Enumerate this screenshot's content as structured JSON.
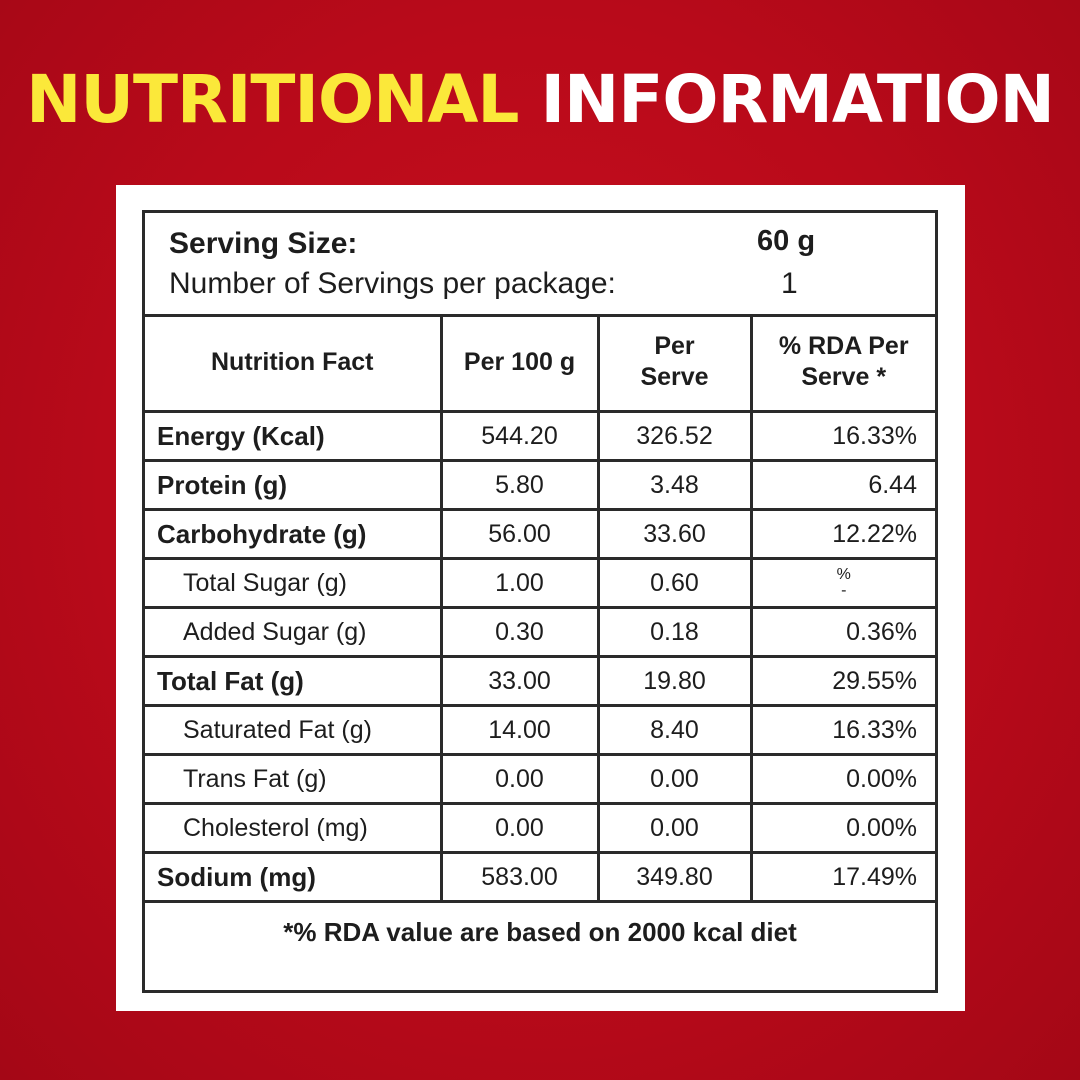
{
  "heading": {
    "part1": "NUTRITIONAL",
    "part2": "INFORMATION"
  },
  "colors": {
    "background": "#b90a1a",
    "heading_yellow": "#fbe83a",
    "heading_white": "#ffffff",
    "card": "#ffffff",
    "border": "#2a2a2a"
  },
  "serving": {
    "size_label": "Serving Size:",
    "size_value": "60 g",
    "count_label": "Number of Servings per package:",
    "count_value": "1"
  },
  "table": {
    "headers": [
      "Nutrition Fact",
      "Per 100 g",
      "Per Serve",
      "% RDA Per Serve *"
    ],
    "rows": [
      {
        "name": "Energy (Kcal)",
        "per100": "544.20",
        "perServe": "326.52",
        "rda": "16.33%"
      },
      {
        "name": "Protein (g)",
        "per100": "5.80",
        "perServe": "3.48",
        "rda": "6.44"
      },
      {
        "name": "Carbohydrate (g)",
        "per100": "56.00",
        "perServe": "33.60",
        "rda": "12.22%"
      },
      {
        "name": "Total Sugar (g)",
        "per100": "1.00",
        "perServe": "0.60",
        "rda": "%\n-"
      },
      {
        "name": "Added Sugar (g)",
        "per100": "0.30",
        "perServe": "0.18",
        "rda": "0.36%"
      },
      {
        "name": "Total Fat (g)",
        "per100": "33.00",
        "perServe": "19.80",
        "rda": "29.55%"
      },
      {
        "name": "Saturated Fat (g)",
        "per100": "14.00",
        "perServe": "8.40",
        "rda": "16.33%"
      },
      {
        "name": "Trans Fat (g)",
        "per100": "0.00",
        "perServe": "0.00",
        "rda": "0.00%"
      },
      {
        "name": "Cholesterol (mg)",
        "per100": "0.00",
        "perServe": "0.00",
        "rda": "0.00%"
      },
      {
        "name": "Sodium (mg)",
        "per100": "583.00",
        "perServe": "349.80",
        "rda": "17.49%"
      }
    ],
    "footnote": "*% RDA value are based on 2000 kcal diet"
  }
}
